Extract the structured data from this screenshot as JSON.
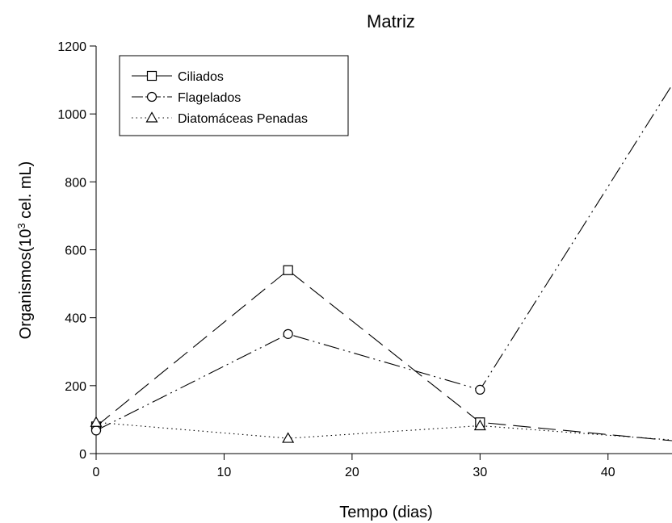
{
  "chart_data": {
    "type": "line",
    "title": "Matriz",
    "xlabel": "Tempo (dias)",
    "ylabel_main": "Organismos(10",
    "ylabel_sup": "3",
    "ylabel_tail": " cel. mL)",
    "xlim": [
      0,
      45
    ],
    "ylim": [
      0,
      1200
    ],
    "xticks": [
      0,
      10,
      20,
      30,
      40
    ],
    "yticks": [
      0,
      200,
      400,
      600,
      800,
      1000,
      1200
    ],
    "grid": false,
    "legend_position": "top-left",
    "series": [
      {
        "name": "Ciliados",
        "marker": "square",
        "dash": "long-dash",
        "x": [
          0,
          15,
          30,
          45
        ],
        "y": [
          80,
          540,
          92,
          38
        ]
      },
      {
        "name": "Flagelados",
        "marker": "circle",
        "dash": "dash-dot-dot",
        "x": [
          0,
          15,
          30,
          45
        ],
        "y": [
          68,
          352,
          188,
          1085
        ]
      },
      {
        "name": "Diatomáceas Penadas",
        "marker": "triangle",
        "dash": "dotted",
        "x": [
          0,
          15,
          30,
          45
        ],
        "y": [
          92,
          45,
          82,
          40
        ]
      }
    ]
  }
}
